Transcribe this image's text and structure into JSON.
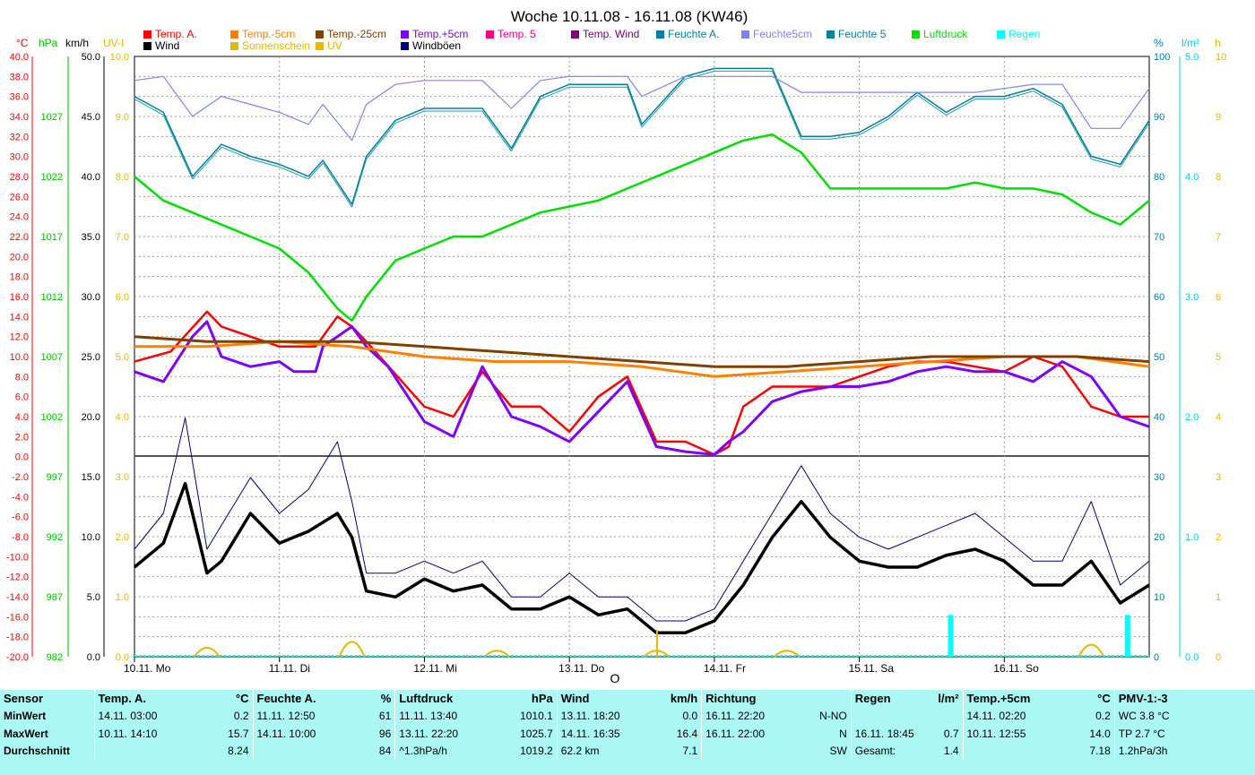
{
  "chart_data": {
    "type": "line",
    "title": "Woche 10.11.08 - 16.11.08 (KW46)",
    "x_start": "10.11.08 00:00",
    "x_end": "16.11.08 24:00",
    "x_tick_labels": [
      "10.11. Mo",
      "11.11. Di",
      "12.11. Mi",
      "13.11. Do",
      "14.11. Fr",
      "15.11. Sa",
      "16.11. So"
    ],
    "x_marker": "O",
    "axes_left": {
      "temp": {
        "label": "°C",
        "color": "#ff0000",
        "range": [
          -20,
          40
        ],
        "ticks": [
          "40.0",
          "38.0",
          "36.0",
          "34.0",
          "32.0",
          "30.0",
          "28.0",
          "26.0",
          "24.0",
          "22.0",
          "20.0",
          "18.0",
          "16.0",
          "14.0",
          "12.0",
          "10.0",
          "8.0",
          "6.0",
          "4.0",
          "2.0",
          "0.0",
          "-2.0",
          "-4.0",
          "-6.0",
          "-8.0",
          "-10.0",
          "-12.0",
          "-14.0",
          "-16.0",
          "-18.0",
          "-20.0"
        ]
      },
      "pressure": {
        "label": "hPa",
        "color": "#00c000",
        "range": [
          982,
          1032
        ],
        "ticks": [
          "1027",
          "1022",
          "1017",
          "1012",
          "1007",
          "1002",
          "997",
          "992",
          "987",
          "982"
        ]
      },
      "wind": {
        "label": "km/h",
        "color": "#000000",
        "ticks": [
          "50.0",
          "45.0",
          "40.0",
          "35.0",
          "30.0",
          "25.0",
          "20.0",
          "15.0",
          "10.0",
          "5.0",
          "0.0"
        ]
      },
      "uv": {
        "label": "UV-I",
        "color": "#e6b800",
        "ticks": [
          "10.0",
          "9.0",
          "8.0",
          "7.0",
          "6.0",
          "5.0",
          "4.0",
          "3.0",
          "2.0",
          "1.0",
          "0.0"
        ]
      }
    },
    "axes_right": {
      "humidity": {
        "label": "%",
        "color": "#0080a0",
        "ticks": [
          "100",
          "90",
          "80",
          "70",
          "60",
          "50",
          "40",
          "30",
          "20",
          "10",
          "0"
        ]
      },
      "rain": {
        "label": "l/m²",
        "color": "#00d0e0",
        "ticks": [
          "5.0",
          "4.0",
          "3.0",
          "2.0",
          "1.0",
          "0.0"
        ]
      },
      "sun": {
        "label": "h",
        "color": "#e6b800",
        "ticks": [
          "10",
          "9",
          "8",
          "7",
          "6",
          "5",
          "4",
          "3",
          "2",
          "1",
          "0"
        ]
      }
    },
    "legend": [
      {
        "name": "Temp. A.",
        "color": "#ff0000"
      },
      {
        "name": "Temp.-5cm",
        "color": "#ff8000"
      },
      {
        "name": "Temp.-25cm",
        "color": "#804000"
      },
      {
        "name": "Temp.+5cm",
        "color": "#8000ff"
      },
      {
        "name": "Temp. 5",
        "color": "#ff0080"
      },
      {
        "name": "Temp. Wind",
        "color": "#800080"
      },
      {
        "name": "Feuchte A.",
        "color": "#0080a0"
      },
      {
        "name": "Feuchte5cm",
        "color": "#8080ff"
      },
      {
        "name": "Feuchte 5",
        "color": "#0080a0"
      },
      {
        "name": "Luftdruck",
        "color": "#00e000"
      },
      {
        "name": "Regen",
        "color": "#00ffff"
      },
      {
        "name": "Wind",
        "color": "#000000"
      },
      {
        "name": "Sonnenschein",
        "color": "#e6b800"
      },
      {
        "name": "UV",
        "color": "#e6b800"
      },
      {
        "name": "Windböen",
        "color": "#000080"
      }
    ],
    "series": [
      {
        "key": "temp_a",
        "unit": "°C",
        "color": "#ff0000",
        "x_days": [
          0,
          0.25,
          0.5,
          0.6,
          0.8,
          1,
          1.25,
          1.4,
          1.5,
          1.6,
          2,
          2.2,
          2.4,
          2.6,
          2.8,
          3,
          3.2,
          3.4,
          3.6,
          3.8,
          4,
          4.1,
          4.2,
          4.4,
          4.6,
          4.8,
          5,
          5.2,
          5.4,
          5.6,
          5.8,
          6,
          6.2,
          6.4,
          6.6,
          6.8,
          7
        ],
        "values": [
          9.5,
          10.5,
          14.5,
          13,
          12,
          11,
          11,
          14,
          13,
          11.5,
          5,
          4,
          8.5,
          5,
          5,
          2.5,
          6,
          8,
          1.5,
          1.5,
          0.2,
          1,
          5,
          7,
          7,
          7,
          8,
          9,
          9.5,
          9.5,
          9,
          8.5,
          10,
          9,
          5,
          4,
          4
        ]
      },
      {
        "key": "temp_p5",
        "unit": "°C",
        "color": "#8000ff",
        "x_days": [
          0,
          0.2,
          0.4,
          0.5,
          0.6,
          0.8,
          1,
          1.1,
          1.25,
          1.3,
          1.5,
          1.6,
          1.75,
          2,
          2.2,
          2.4,
          2.6,
          2.8,
          3,
          3.2,
          3.4,
          3.6,
          3.8,
          4,
          4.1,
          4.2,
          4.4,
          4.6,
          4.8,
          5,
          5.2,
          5.4,
          5.6,
          5.8,
          6,
          6.2,
          6.4,
          6.6,
          6.8,
          7
        ],
        "values": [
          8.5,
          7.5,
          12,
          13.5,
          10,
          9,
          9.5,
          8.5,
          8.5,
          11,
          13,
          11,
          9,
          3.5,
          2,
          9,
          4,
          3,
          1.5,
          4.5,
          7.5,
          1,
          0.5,
          0.2,
          1.5,
          2.5,
          5.5,
          6.5,
          7,
          7,
          7.5,
          8.5,
          9,
          8.5,
          8.5,
          7.5,
          9.5,
          8,
          4,
          3
        ]
      },
      {
        "key": "temp_m5",
        "unit": "°C",
        "color": "#ff8000",
        "x_days": [
          0,
          0.5,
          1,
          1.5,
          2,
          2.5,
          3,
          3.5,
          4,
          4.5,
          5,
          5.5,
          6,
          6.5,
          7
        ],
        "values": [
          11,
          11,
          11.5,
          11,
          10,
          9.5,
          9.5,
          9,
          8,
          8.5,
          9,
          9.5,
          10,
          10,
          9
        ]
      },
      {
        "key": "temp_m25",
        "unit": "°C",
        "color": "#804000",
        "x_days": [
          0,
          0.5,
          1,
          1.5,
          2,
          2.5,
          3,
          3.5,
          4,
          4.5,
          5,
          5.5,
          6,
          6.5,
          7
        ],
        "values": [
          12,
          11.5,
          11.5,
          11.5,
          11,
          10.5,
          10,
          9.5,
          9,
          9,
          9.5,
          10,
          10,
          10,
          9.5
        ]
      },
      {
        "key": "humidity_a",
        "unit": "%",
        "color": "#0080a0",
        "x_days": [
          0,
          0.2,
          0.4,
          0.6,
          0.8,
          1,
          1.2,
          1.3,
          1.5,
          1.6,
          1.8,
          2,
          2.2,
          2.4,
          2.6,
          2.8,
          3,
          3.2,
          3.4,
          3.5,
          3.8,
          4,
          4.2,
          4.4,
          4.6,
          4.8,
          5,
          5.2,
          5.4,
          5.6,
          5.8,
          6,
          6.2,
          6.4,
          6.6,
          6.8,
          7
        ],
        "values": [
          90,
          86,
          70,
          78,
          75,
          73,
          70,
          74,
          63,
          75,
          84,
          87,
          87,
          87,
          77,
          90,
          93,
          93,
          93,
          83,
          95,
          97,
          97,
          97,
          80,
          80,
          81,
          85,
          91,
          86,
          90,
          90,
          92,
          88,
          75,
          73,
          84
        ]
      },
      {
        "key": "humidity_5cm",
        "unit": "%",
        "color": "#8080ff",
        "x_days": [
          0,
          0.2,
          0.4,
          0.6,
          0.8,
          1,
          1.2,
          1.3,
          1.5,
          1.6,
          1.8,
          2,
          2.2,
          2.4,
          2.6,
          2.8,
          3,
          3.2,
          3.4,
          3.5,
          3.8,
          4,
          4.2,
          4.4,
          4.6,
          4.8,
          5,
          5.2,
          5.4,
          5.6,
          5.8,
          6,
          6.2,
          6.4,
          6.6,
          6.8,
          7
        ],
        "values": [
          94,
          95,
          85,
          90,
          88,
          86,
          83,
          88,
          79,
          88,
          93,
          94,
          94,
          94,
          87,
          94,
          95,
          95,
          95,
          90,
          95,
          95,
          95,
          95,
          91,
          91,
          91,
          91,
          91,
          91,
          91,
          92,
          93,
          93,
          82,
          82,
          92
        ]
      },
      {
        "key": "pressure",
        "unit": "hPa",
        "color": "#00e000",
        "x_days": [
          0,
          0.2,
          0.4,
          0.6,
          0.8,
          1,
          1.2,
          1.4,
          1.5,
          1.6,
          1.8,
          2,
          2.2,
          2.4,
          2.6,
          2.8,
          3,
          3.2,
          3.4,
          3.6,
          3.8,
          4,
          4.2,
          4.4,
          4.6,
          4.8,
          5,
          5.2,
          5.4,
          5.6,
          5.8,
          6,
          6.2,
          6.4,
          6.6,
          6.8,
          7
        ],
        "values": [
          1022,
          1020,
          1019,
          1018,
          1017,
          1016,
          1014,
          1011,
          1010,
          1012,
          1015,
          1016,
          1017,
          1017,
          1018,
          1019,
          1019.5,
          1020,
          1021,
          1022,
          1023,
          1024,
          1025,
          1025.5,
          1024,
          1021,
          1021,
          1021,
          1021,
          1021,
          1021.5,
          1021,
          1021,
          1020.5,
          1019,
          1018,
          1020
        ]
      },
      {
        "key": "wind",
        "unit": "km/h",
        "color": "#000000",
        "x_days": [
          0,
          0.2,
          0.35,
          0.5,
          0.6,
          0.8,
          1,
          1.2,
          1.4,
          1.5,
          1.6,
          1.8,
          2,
          2.2,
          2.4,
          2.6,
          2.8,
          3,
          3.2,
          3.4,
          3.6,
          3.8,
          4,
          4.2,
          4.4,
          4.6,
          4.8,
          5,
          5.2,
          5.4,
          5.6,
          5.8,
          6,
          6.2,
          6.4,
          6.6,
          6.8,
          7
        ],
        "values": [
          7.5,
          9.5,
          14.5,
          7,
          8,
          12,
          9.5,
          10.5,
          12,
          10,
          5.5,
          5,
          6.5,
          5.5,
          6,
          4,
          4,
          5,
          3.5,
          4,
          2,
          2,
          3,
          6,
          10,
          13,
          10,
          8,
          7.5,
          7.5,
          8.5,
          9,
          8,
          6,
          6,
          8,
          4.5,
          6
        ]
      },
      {
        "key": "gust",
        "unit": "km/h",
        "color": "#000080",
        "x_days": [
          0,
          0.2,
          0.35,
          0.5,
          0.6,
          0.8,
          1,
          1.2,
          1.4,
          1.5,
          1.6,
          1.8,
          2,
          2.2,
          2.4,
          2.6,
          2.8,
          3,
          3.2,
          3.4,
          3.6,
          3.8,
          4,
          4.2,
          4.4,
          4.6,
          4.8,
          5,
          5.2,
          5.4,
          5.6,
          5.8,
          6,
          6.2,
          6.4,
          6.6,
          6.8,
          7
        ],
        "values": [
          9,
          12,
          20,
          9,
          11,
          15,
          12,
          14,
          18,
          13,
          7,
          7,
          8,
          7,
          8,
          5,
          5,
          7,
          5,
          5,
          3,
          3,
          4,
          8,
          12,
          16,
          12,
          10,
          9,
          10,
          11,
          12,
          10,
          8,
          8,
          13,
          6,
          8
        ]
      },
      {
        "key": "rain",
        "unit": "l/m²",
        "color": "#00ffff",
        "x_days": [
          5.63,
          6.85
        ],
        "values": [
          0.7,
          0.7
        ]
      },
      {
        "key": "sun",
        "unit": "h",
        "color": "#e6b800",
        "x_days": [
          0.5,
          1.5,
          2.5,
          3.6,
          4.5,
          6.6
        ],
        "values": [
          0.15,
          0.25,
          0.1,
          0.1,
          0.1,
          0.2
        ]
      }
    ]
  },
  "stats": {
    "headers": [
      "Sensor",
      "Temp. A.",
      "°C",
      "Feuchte A.",
      "%",
      "Luftdruck",
      "hPa",
      "Wind",
      "km/h",
      "Richtung",
      "",
      "Regen",
      "l/m²",
      "Temp.+5cm",
      "°C",
      "PMV-1:-3"
    ],
    "rows": [
      {
        "label": "MinWert",
        "cells": [
          "14.11. 03:00",
          "0.2",
          "11.11. 12:50",
          "61",
          "11.11. 13:40",
          "1010.1",
          "13.11. 18:20",
          "0.0",
          "16.11. 22:20",
          "N-NO",
          "",
          "",
          "14.11. 02:20",
          "0.2",
          "WC 3.8 °C"
        ]
      },
      {
        "label": "MaxWert",
        "cells": [
          "10.11. 14:10",
          "15.7",
          "14.11. 10:00",
          "96",
          "13.11. 22:20",
          "1025.7",
          "14.11. 16:35",
          "16.4",
          "16.11. 22:00",
          "N",
          "16.11. 18:45",
          "0.7",
          "10.11. 12:55",
          "14.0",
          "TP 2.7 °C"
        ]
      },
      {
        "label": "Durchschnitt",
        "cells": [
          "",
          "8.24",
          "",
          "84",
          "^1.3hPa/h",
          "1019.2",
          "62.2 km",
          "7.1",
          "",
          "SW",
          "Gesamt:",
          "1.4",
          "",
          "7.18",
          "1.2hPa/3h"
        ]
      }
    ]
  }
}
